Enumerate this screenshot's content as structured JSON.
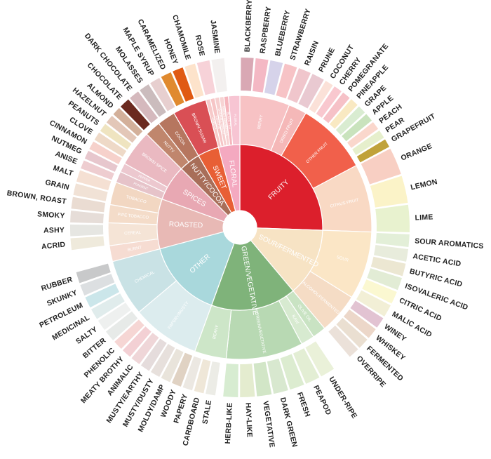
{
  "wheel": {
    "center_color": "#ffffff",
    "inner": [
      {
        "label": "FRUITY",
        "color": "#dc1f2c",
        "label_light": true
      },
      {
        "label": "SOUR/FERMENTED",
        "color": "#f7e3c4",
        "label_light": true
      },
      {
        "label": "GREEN/VEGETATIVE",
        "color": "#7fb37a",
        "label_light": true
      },
      {
        "label": "OTHER",
        "color": "#a9d8dc",
        "label_light": true
      },
      {
        "label": "ROASTED",
        "color": "#e8b9b5",
        "label_light": true
      },
      {
        "label": "SPICES",
        "color": "#e8a8b3",
        "label_light": true
      },
      {
        "label": "NUTTY/COCOA",
        "color": "#a86e59",
        "label_light": true
      },
      {
        "label": "SWEET",
        "color": "#e85f35",
        "label_light": true
      },
      {
        "label": "FLORAL",
        "color": "#f4a9c0",
        "label_light": true
      }
    ],
    "middle": [
      {
        "label": "BERRY",
        "color": "#f7c2c4"
      },
      {
        "label": "DRIED FRUIT",
        "color": "#f5b8b8"
      },
      {
        "label": "OTHER FRUIT",
        "color": "#f1604b"
      },
      {
        "label": "CITRUS FRUIT",
        "color": "#f9d9c4"
      },
      {
        "label": "SOUR",
        "color": "#fbe6c6"
      },
      {
        "label": "ALCOHOL/FERMENTED",
        "color": "#f5dcc5"
      },
      {
        "label": "OLIVE OIL",
        "color": "#c9e3c3"
      },
      {
        "label": "RAW",
        "color": "#d7ead0"
      },
      {
        "label": "GREEN/VEGETATIVE",
        "color": "#b8d9b3"
      },
      {
        "label": "BEANY",
        "color": "#cde6c8"
      },
      {
        "label": "PAPERY/MUSTY",
        "color": "#dcecee"
      },
      {
        "label": "CHEMICAL",
        "color": "#c9e2e5"
      },
      {
        "label": "BURNT",
        "color": "#f6dcd2"
      },
      {
        "label": "CEREAL",
        "color": "#f5e4d6"
      },
      {
        "label": "PIPE TOBACCO",
        "color": "#f4dcc9"
      },
      {
        "label": "TOBACCO",
        "color": "#f2d7c2"
      },
      {
        "label": "PUNGENT",
        "color": "#e6c3c9"
      },
      {
        "label": "PEPPER",
        "color": "#ecc8cf"
      },
      {
        "label": "BROWN SPICE",
        "color": "#eab9c1"
      },
      {
        "label": "NUTTY",
        "color": "#c0866d"
      },
      {
        "label": "COCOA",
        "color": "#b6765f"
      },
      {
        "label": "BROWN SUGAR",
        "color": "#d94f55"
      },
      {
        "label": "VANILLA",
        "color": "#f7c9c9"
      },
      {
        "label": "VANILLIN",
        "color": "#f6c5c6"
      },
      {
        "label": "OVERALL SWEET",
        "color": "#f6cfcf"
      },
      {
        "label": "SWEET AROMATICS",
        "color": "#f7d3d3"
      },
      {
        "label": "BLACK TEA",
        "color": "#f5b5bc"
      },
      {
        "label": "FLORAL",
        "color": "#f7c5d3"
      }
    ],
    "outer": [
      {
        "label": "BLACKBERRY",
        "color": "#d9a8b4"
      },
      {
        "label": "RASPBERRY",
        "color": "#f4b8c4"
      },
      {
        "label": "BLUEBERRY",
        "color": "#d6d3ea"
      },
      {
        "label": "STRAWBERRY",
        "color": "#f7c3c6"
      },
      {
        "label": "RAISIN",
        "color": "#f0c6cc"
      },
      {
        "label": "PRUNE",
        "color": "#e9c9d1"
      },
      {
        "label": "COCONUT",
        "color": "#fbe1d8"
      },
      {
        "label": "CHERRY",
        "color": "#f9c8cf"
      },
      {
        "label": "POMEGRANATE",
        "color": "#f6c1c7"
      },
      {
        "label": "PINEAPPLE",
        "color": "#f9e9c2"
      },
      {
        "label": "GRAPE",
        "color": "#d9ecd1"
      },
      {
        "label": "APPLE",
        "color": "#c9e3bd"
      },
      {
        "label": "PEACH",
        "color": "#fad7cc"
      },
      {
        "label": "PEAR",
        "color": "#e6efcc"
      },
      {
        "label": "GRAPEFRUIT",
        "color": "#c0a23a"
      },
      {
        "label": "ORANGE",
        "color": "#f8cfc3"
      },
      {
        "label": "LEMON",
        "color": "#fbf3c8"
      },
      {
        "label": "LIME",
        "color": "#e8f2cf"
      },
      {
        "label": "SOUR AROMATICS",
        "color": "#e3efd8"
      },
      {
        "label": "ACETIC ACID",
        "color": "#e8ecdc"
      },
      {
        "label": "BUTYRIC ACID",
        "color": "#ece7d2"
      },
      {
        "label": "ISOVALERIC ACID",
        "color": "#e2ecd5"
      },
      {
        "label": "CITRIC ACID",
        "color": "#fbf8d1"
      },
      {
        "label": "MALIC ACID",
        "color": "#f2efd6"
      },
      {
        "label": "WINEY",
        "color": "#e2c3d2"
      },
      {
        "label": "WHISKEY",
        "color": "#ecd7c9"
      },
      {
        "label": "FERMENTED",
        "color": "#eadfd1"
      },
      {
        "label": "OVERRIPE",
        "color": "#ebe1d9"
      },
      {
        "label": "UNDER-RIPE",
        "color": "#eaf1d9"
      },
      {
        "label": "PEAPOD",
        "color": "#e3eed4"
      },
      {
        "label": "FRESH",
        "color": "#dcecd0"
      },
      {
        "label": "DARK GREEN",
        "color": "#d8e8cf"
      },
      {
        "label": "VEGETATIVE",
        "color": "#d2e6c7"
      },
      {
        "label": "HAY-LIKE",
        "color": "#e4eccf"
      },
      {
        "label": "HERB-LIKE",
        "color": "#d7ecd1"
      },
      {
        "label": "STALE",
        "color": "#ecece6"
      },
      {
        "label": "CARDBOARD",
        "color": "#efe7d8"
      },
      {
        "label": "PAPERY",
        "color": "#ece8e2"
      },
      {
        "label": "WOODY",
        "color": "#e0d2c3"
      },
      {
        "label": "MOLDY/DAMP",
        "color": "#e9e4db"
      },
      {
        "label": "MUSTY/DUSTY",
        "color": "#e7e0dc"
      },
      {
        "label": "MUSTY/EARTHY",
        "color": "#e5dcdc"
      },
      {
        "label": "ANIMALIC",
        "color": "#efd6d8"
      },
      {
        "label": "MEATY BROTHY",
        "color": "#f3d0d4"
      },
      {
        "label": "PHENOLIC",
        "color": "#f6d6d4"
      },
      {
        "label": "BITTER",
        "color": "#e7eae8"
      },
      {
        "label": "SALTY",
        "color": "#eef0ef"
      },
      {
        "label": "MEDICINAL",
        "color": "#e0ecec"
      },
      {
        "label": "PETROLEUM",
        "color": "#cbe6ea"
      },
      {
        "label": "SKUNKY",
        "color": "#dcdfe1"
      },
      {
        "label": "RUBBER",
        "color": "#c8c9ca"
      },
      {
        "label": "ACRID",
        "color": "#efeadc"
      },
      {
        "label": "ASHY",
        "color": "#e6e6e2"
      },
      {
        "label": "SMOKY",
        "color": "#e6ddd8"
      },
      {
        "label": "BROWN, ROAST",
        "color": "#eadcd2"
      },
      {
        "label": "GRAIN",
        "color": "#f1e2d6"
      },
      {
        "label": "MALT",
        "color": "#f5e0d3"
      },
      {
        "label": "ANISE",
        "color": "#eecdd0"
      },
      {
        "label": "NUTMEG",
        "color": "#e7c7cd"
      },
      {
        "label": "CINNAMON",
        "color": "#f6d1cb"
      },
      {
        "label": "CLOVE",
        "color": "#eed9c7"
      },
      {
        "label": "PEANUTS",
        "color": "#efe4c0"
      },
      {
        "label": "HAZELNUT",
        "color": "#e3c7b8"
      },
      {
        "label": "ALMOND",
        "color": "#d3b09a"
      },
      {
        "label": "CHOCOLATE",
        "color": "#6b2a1f"
      },
      {
        "label": "DARK CHOCOLATE",
        "color": "#d5b9bd"
      },
      {
        "label": "MOLASSES",
        "color": "#cbbcbd"
      },
      {
        "label": "MAPLE SYRUP",
        "color": "#e7cfcf"
      },
      {
        "label": "CARAMELIZED",
        "color": "#e08a2f"
      },
      {
        "label": "HONEY",
        "color": "#e05a13"
      },
      {
        "label": "CHAMOMILE",
        "color": "#fde3cb"
      },
      {
        "label": "ROSE",
        "color": "#f7d2d8"
      },
      {
        "label": "JASMINE",
        "color": "#f3f0ef"
      }
    ]
  }
}
